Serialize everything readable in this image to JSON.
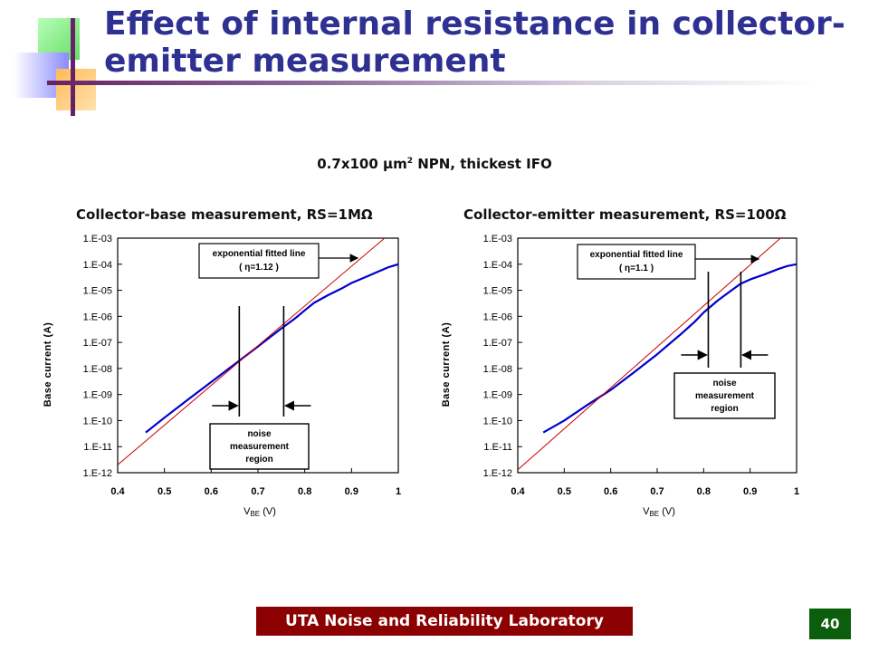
{
  "slide": {
    "title": "Effect of internal resistance in collector-emitter measurement",
    "subtitle_main": "0.7x100 μm",
    "subtitle_sup": "2",
    "subtitle_rest": " NPN, thickest IFO",
    "footer": "UTA Noise and Reliability Laboratory",
    "page_number": "40",
    "colors": {
      "title": "#2e3192",
      "footer_bg": "#8b0000",
      "page_bg": "#0b5e0b",
      "measured": "#0000cc",
      "fit": "#cc0000"
    }
  },
  "chart_data": [
    {
      "type": "line",
      "title": "Collector-base measurement, RS=1MΩ",
      "xlabel_main": "V",
      "xlabel_sub": "BE",
      "xlabel_unit": " (V)",
      "ylabel": "Base current (A)",
      "xlim": [
        0.4,
        1.0
      ],
      "x_ticks": [
        "0.4",
        "0.5",
        "0.6",
        "0.7",
        "0.8",
        "0.9",
        "1"
      ],
      "y_log": true,
      "ylim": [
        1e-12,
        0.001
      ],
      "y_ticks": [
        "1.E-12",
        "1.E-11",
        "1.E-10",
        "1.E-09",
        "1.E-08",
        "1.E-07",
        "1.E-06",
        "1.E-05",
        "1.E-04",
        "1.E-03"
      ],
      "grid": false,
      "series": [
        {
          "x": [
            0.46,
            0.5,
            0.55,
            0.6,
            0.65,
            0.7,
            0.75,
            0.78,
            0.8,
            0.82,
            0.85,
            0.88,
            0.9,
            0.93,
            0.96,
            0.98,
            1.0
          ],
          "y": [
            3.5e-11,
            1.3e-10,
            6.3e-10,
            3e-09,
            1.45e-08,
            7e-08,
            3.4e-07,
            8.5e-07,
            1.7e-06,
            3.3e-06,
            6.5e-06,
            1.2e-05,
            1.9e-05,
            3.2e-05,
            5.5e-05,
            7.8e-05,
            0.0001
          ]
        },
        {
          "x": [
            0.4,
            1.0
          ],
          "y": [
            2e-12,
            0.0028
          ]
        }
      ],
      "annotations": {
        "fit_line": [
          "exponential fitted line",
          "( η=1.12 )"
        ],
        "noise_region": [
          "noise",
          "measurement",
          "region"
        ],
        "noise_bounds_x": [
          0.66,
          0.755
        ]
      }
    },
    {
      "type": "line",
      "title": "Collector-emitter measurement, RS=100Ω",
      "xlabel_main": "V",
      "xlabel_sub": "BE",
      "xlabel_unit": " (V)",
      "ylabel": "Base current (A)",
      "xlim": [
        0.4,
        1.0
      ],
      "x_ticks": [
        "0.4",
        "0.5",
        "0.6",
        "0.7",
        "0.8",
        "0.9",
        "1"
      ],
      "y_log": true,
      "ylim": [
        1e-12,
        0.001
      ],
      "y_ticks": [
        "1.E-12",
        "1.E-11",
        "1.E-10",
        "1.E-09",
        "1.E-08",
        "1.E-07",
        "1.E-06",
        "1.E-05",
        "1.E-04",
        "1.E-03"
      ],
      "grid": false,
      "series": [
        {
          "x": [
            0.455,
            0.5,
            0.55,
            0.6,
            0.65,
            0.7,
            0.75,
            0.78,
            0.8,
            0.83,
            0.86,
            0.88,
            0.9,
            0.93,
            0.96,
            0.98,
            1.0
          ],
          "y": [
            3.5e-11,
            1e-10,
            4e-10,
            1.5e-09,
            7e-09,
            3.5e-08,
            2e-07,
            6e-07,
            1.4e-06,
            4e-06,
            1e-05,
            1.8e-05,
            2.6e-05,
            4e-05,
            6.5e-05,
            8.5e-05,
            0.0001
          ]
        },
        {
          "x": [
            0.4,
            1.0
          ],
          "y": [
            1.3e-12,
            0.0035
          ]
        }
      ],
      "annotations": {
        "fit_line": [
          "exponential fitted line",
          "( η=1.1 )"
        ],
        "noise_region": [
          "noise",
          "measurement",
          "region"
        ],
        "noise_bounds_x": [
          0.81,
          0.88
        ]
      }
    }
  ]
}
